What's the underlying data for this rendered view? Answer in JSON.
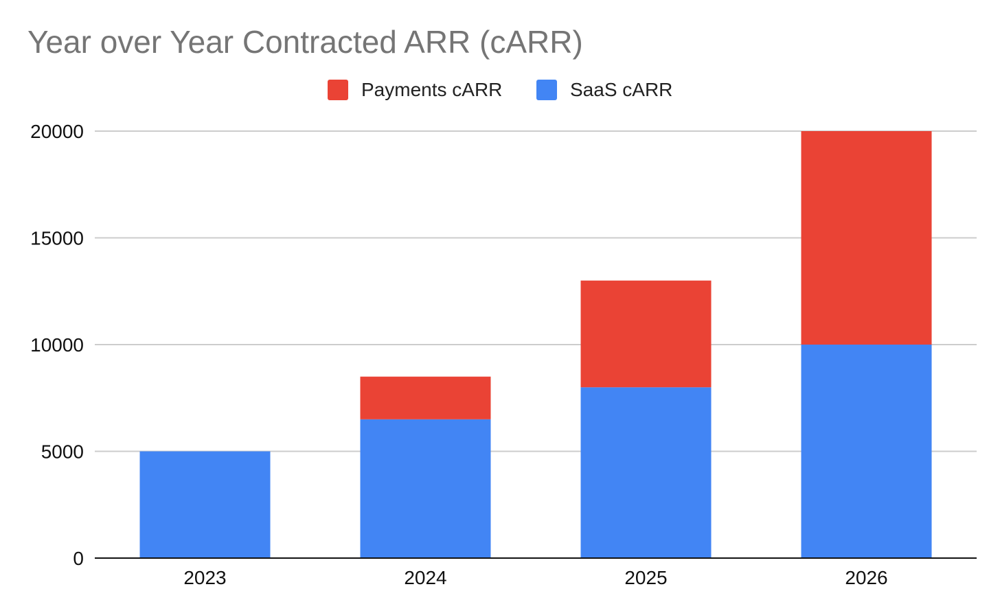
{
  "chart_data": {
    "type": "bar",
    "stacked": true,
    "title": "Year over Year Contracted ARR (cARR)",
    "xlabel": "",
    "ylabel": "",
    "categories": [
      "2023",
      "2024",
      "2025",
      "2026"
    ],
    "series": [
      {
        "name": "SaaS cARR",
        "color": "#4285f4",
        "values": [
          5000,
          6500,
          8000,
          10000
        ]
      },
      {
        "name": "Payments cARR",
        "color": "#ea4335",
        "values": [
          0,
          2000,
          5000,
          10000
        ]
      }
    ],
    "ylim": [
      0,
      20000
    ],
    "yticks": [
      "0",
      "5000",
      "10000",
      "15000",
      "20000"
    ],
    "legend_order": [
      "Payments cARR",
      "SaaS cARR"
    ],
    "legend_position": "top-center",
    "grid": true
  }
}
